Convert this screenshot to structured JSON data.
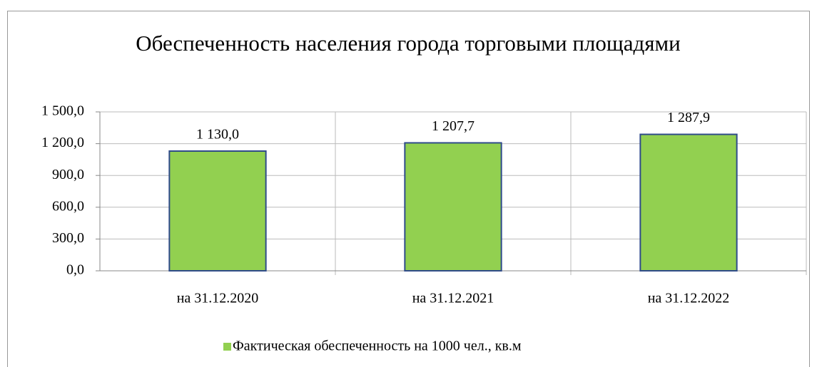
{
  "chart_data": {
    "type": "bar",
    "title": "Обеспеченность населения города торговыми площадями",
    "categories": [
      "на 31.12.2020",
      "на 31.12.2021",
      "на 31.12.2022"
    ],
    "series": [
      {
        "name": "Фактическая обеспеченность на 1000 чел., кв.м",
        "color": "#92d050",
        "values": [
          1130.0,
          1207.7,
          1287.9
        ],
        "value_labels": [
          "1 130,0",
          "1 207,7",
          "1 287,9"
        ]
      }
    ],
    "ylim": [
      0,
      1500
    ],
    "yticks": [
      {
        "value": 0,
        "label": "0,0"
      },
      {
        "value": 300,
        "label": "300,0"
      },
      {
        "value": 600,
        "label": "600,0"
      },
      {
        "value": 900,
        "label": "900,0"
      },
      {
        "value": 1200,
        "label": "1 200,0"
      },
      {
        "value": 1500,
        "label": "1 500,0"
      }
    ],
    "grid": true,
    "legend": "bottom"
  }
}
